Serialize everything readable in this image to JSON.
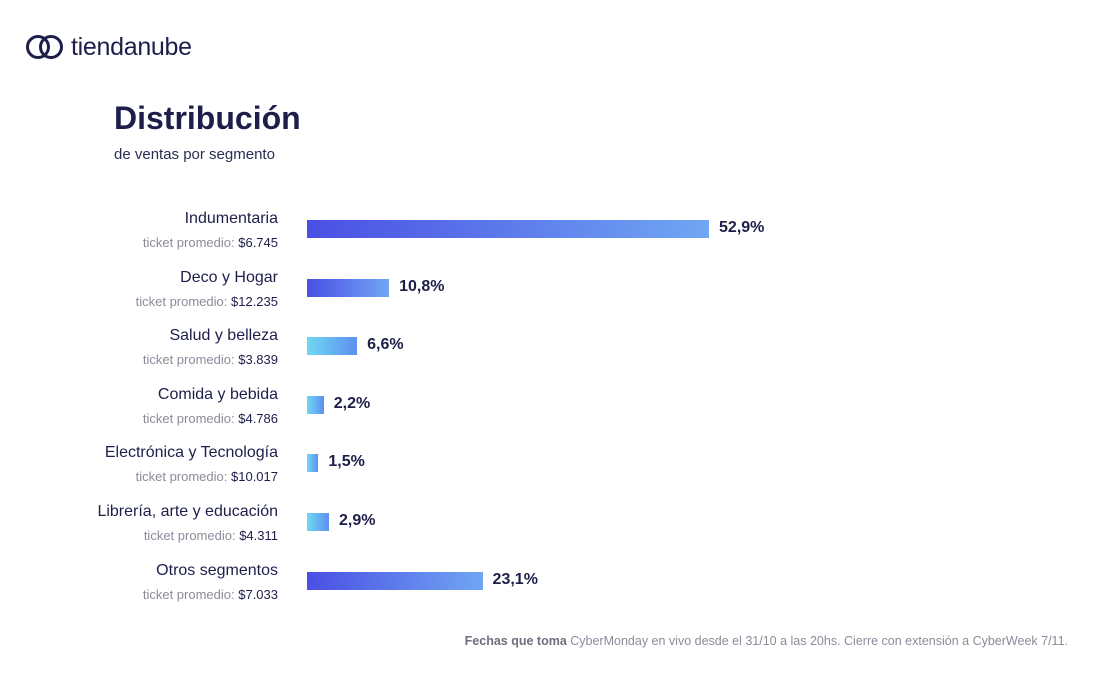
{
  "brand": {
    "name": "tiendanube",
    "color": "#1d1f4a"
  },
  "chart_data": {
    "type": "bar",
    "orientation": "horizontal",
    "title": "Distribución",
    "subtitle": "de ventas por segmento",
    "ticket_label": "ticket promedio:",
    "categories": [
      "Indumentaria",
      "Deco y Hogar",
      "Salud y belleza",
      "Comida y bebida",
      "Electrónica y Tecnología",
      "Librería, arte y educación",
      "Otros segmentos"
    ],
    "values": [
      52.9,
      10.8,
      6.6,
      2.2,
      1.5,
      2.9,
      23.1
    ],
    "value_labels": [
      "52,9%",
      "10,8%",
      "6,6%",
      "2,2%",
      "1,5%",
      "2,9%",
      "23,1%"
    ],
    "tickets": [
      "$6.745",
      "$12.235",
      "$3.839",
      "$4.786",
      "$10.017",
      "$4.311",
      "$7.033"
    ],
    "gradients": {
      "dark": [
        "#4a4fe4",
        "#70a6f3"
      ],
      "light": [
        "#70d8f3",
        "#5d8ff0"
      ]
    },
    "bar_styles": [
      "dark",
      "dark",
      "light",
      "light",
      "light",
      "light",
      "dark"
    ],
    "grid": false
  },
  "footnote": {
    "bold": "Fechas que toma",
    "text": " CyberMonday en vivo desde el 31/10 a las 20hs. Cierre con extensión a CyberWeek 7/11."
  }
}
